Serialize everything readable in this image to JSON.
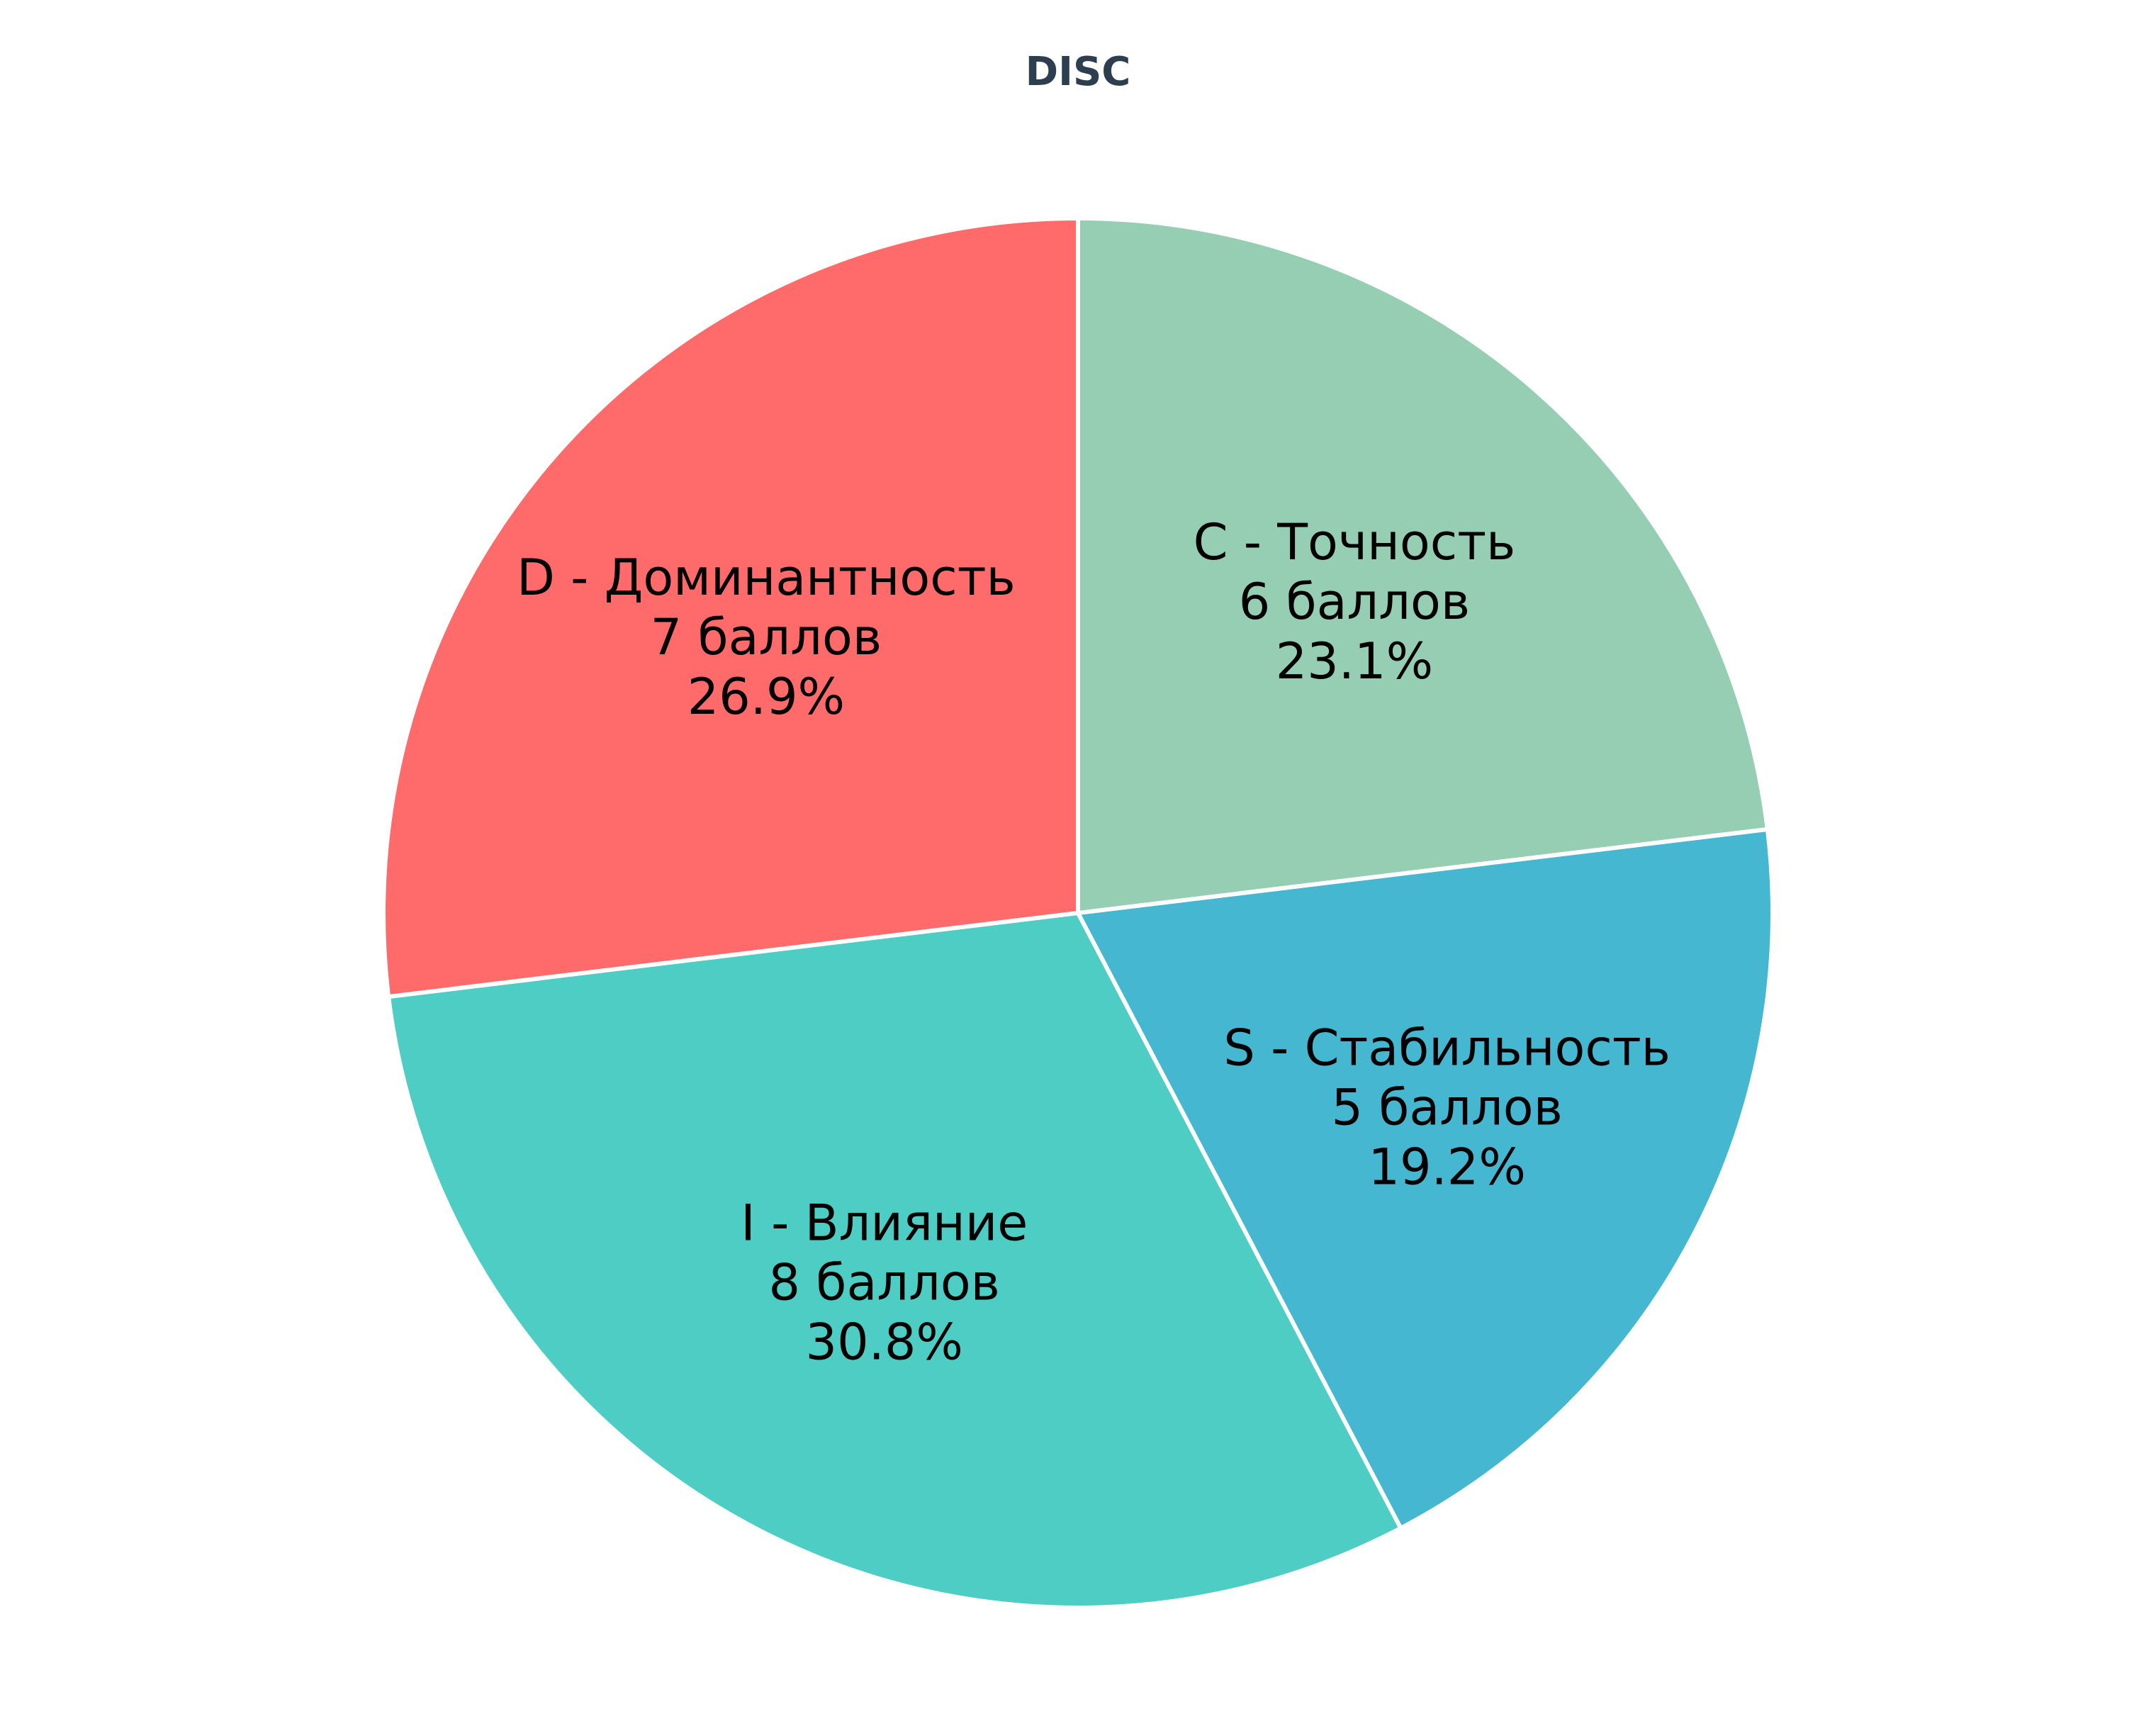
{
  "chart_data": {
    "type": "pie",
    "title": "DISC",
    "unit": "баллов",
    "start_angle_deg": 90,
    "direction": "counterclockwise",
    "edge_color": "#ffffff",
    "slices": [
      {
        "label": "D - Доминантность",
        "value": 7,
        "value_text": "7 баллов",
        "percent": 26.9,
        "percent_text": "26.9%",
        "color": "#ff6b6b"
      },
      {
        "label": "I - Влияние",
        "value": 8,
        "value_text": "8 баллов",
        "percent": 30.8,
        "percent_text": "30.8%",
        "color": "#4ecdc4"
      },
      {
        "label": "S - Стабильность",
        "value": 5,
        "value_text": "5 баллов",
        "percent": 19.2,
        "percent_text": "19.2%",
        "color": "#45b7d1"
      },
      {
        "label": "C - Точность",
        "value": 6,
        "value_text": "6 баллов",
        "percent": 23.1,
        "percent_text": "23.1%",
        "color": "#96ceb4"
      }
    ]
  }
}
